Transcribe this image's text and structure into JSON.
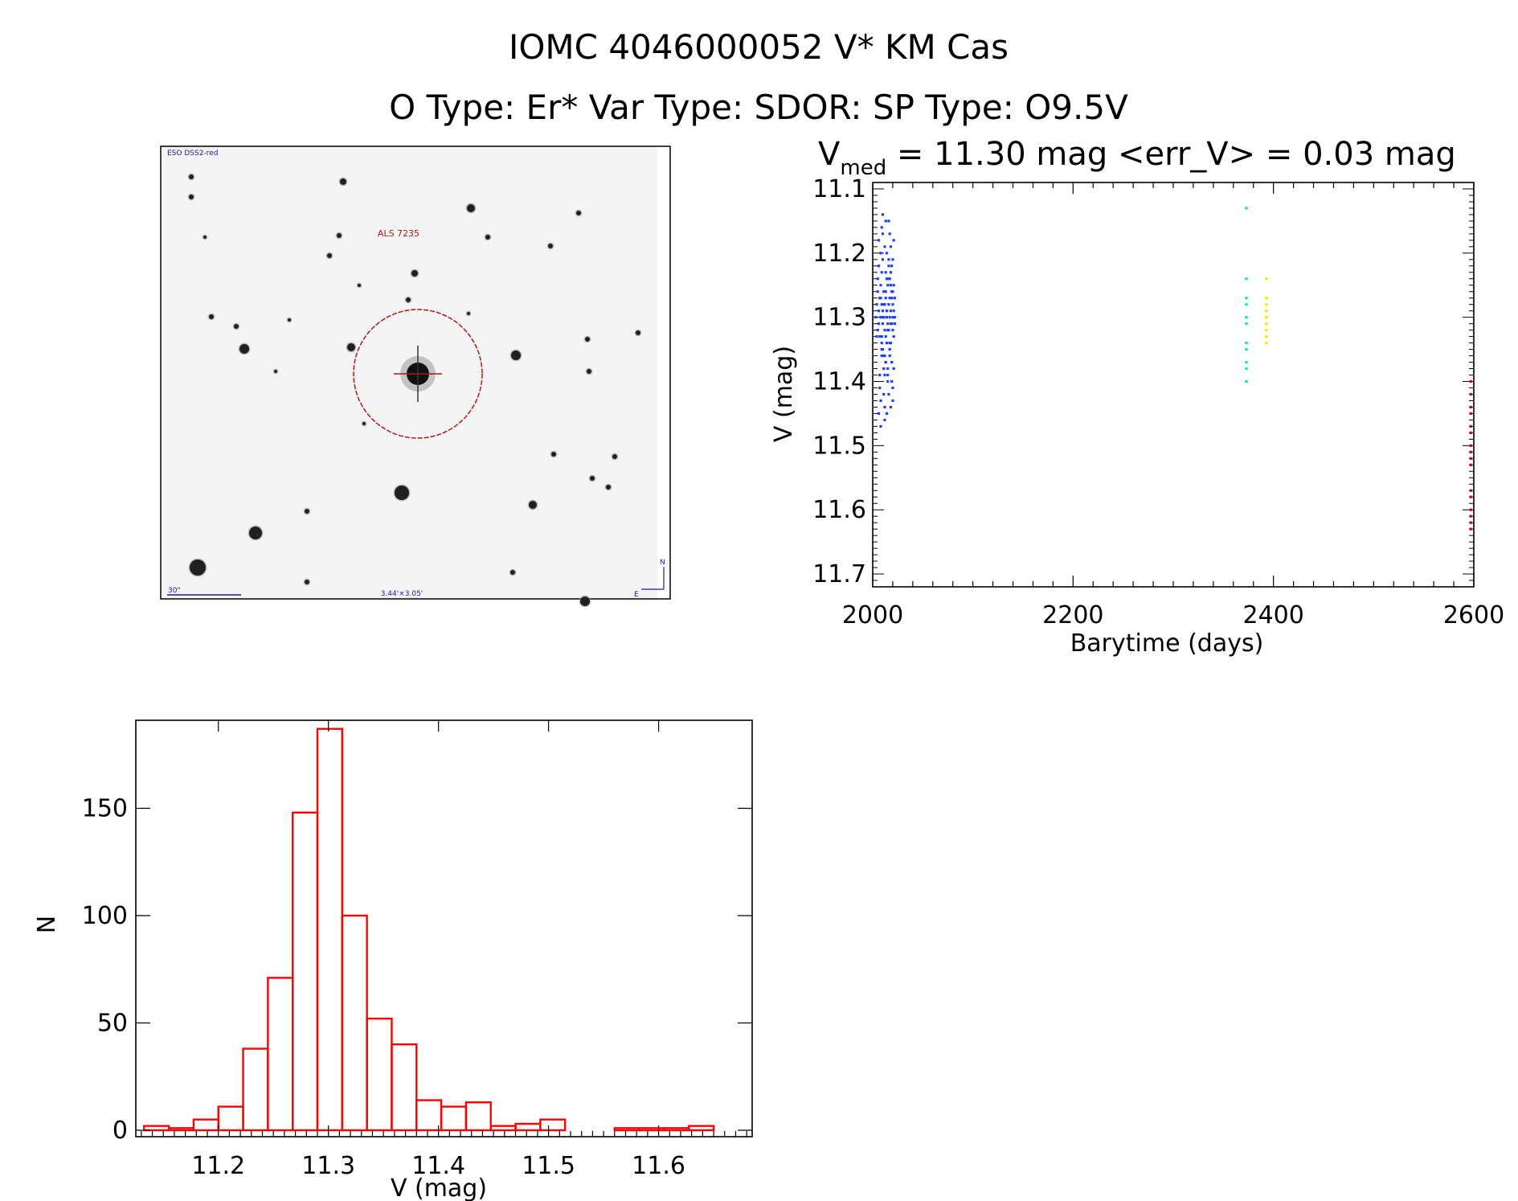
{
  "header": {
    "title": "IOMC 4046000052    V* KM Cas",
    "subtitle": "O Type: Er*  Var Type: SDOR:  SP Type: O9.5V"
  },
  "finder": {
    "survey_label": "ESO DSS2-red",
    "target_label": "ALS 7235",
    "scale_label": "30\"",
    "fov_label": "3.44'×3.05'",
    "north_label": "N",
    "east_label": "E"
  },
  "chart_data": [
    {
      "type": "scatter",
      "name": "light-curve",
      "title_main": "V",
      "title_sub": "med",
      "title_rest": " = 11.30 mag <err_V> = 0.03 mag",
      "xlabel": "Barytime (days)",
      "ylabel": "V (mag)",
      "xlim": [
        2000,
        2600
      ],
      "ylim": [
        11.72,
        11.09
      ],
      "x_ticks": [
        2000,
        2200,
        2400,
        2600
      ],
      "x_tick_labels": [
        "2000",
        "2200",
        "2400",
        "2600"
      ],
      "y_ticks": [
        11.1,
        11.2,
        11.3,
        11.4,
        11.5,
        11.6,
        11.7
      ],
      "y_tick_labels": [
        "11.1",
        "11.2",
        "11.3",
        "11.4",
        "11.5",
        "11.6",
        "11.7"
      ],
      "series": [
        {
          "name": "blue",
          "color": "#1f3fff",
          "x": [
            2003,
            2004,
            2005,
            2005,
            2006,
            2006,
            2007,
            2007,
            2008,
            2008,
            2009,
            2009,
            2010,
            2010,
            2011,
            2011,
            2012,
            2012,
            2013,
            2013,
            2014,
            2014,
            2015,
            2015,
            2016,
            2016,
            2017,
            2017,
            2018,
            2018,
            2019,
            2019,
            2020,
            2020,
            2021,
            2021,
            2022,
            2022,
            2006,
            2010,
            2014,
            2018,
            2009,
            2013,
            2017,
            2021,
            2008,
            2012,
            2016,
            2020,
            2007,
            2011,
            2015,
            2019,
            2005,
            2009,
            2013,
            2017,
            2021,
            2004,
            2008,
            2012,
            2016,
            2020,
            2006,
            2010,
            2014,
            2018,
            2022,
            2007,
            2011,
            2015,
            2019,
            2009,
            2013,
            2017,
            2021,
            2008,
            2012,
            2016,
            2020,
            2010,
            2014,
            2018,
            2011,
            2015,
            2019,
            2009,
            2013,
            2017,
            2006,
            2012,
            2018,
            2010,
            2016,
            2008,
            2014,
            2020,
            2011,
            2017,
            2013,
            2009,
            2015,
            2019,
            2012,
            2016,
            2010,
            2018,
            2014,
            2020
          ],
          "y": [
            11.3,
            11.28,
            11.32,
            11.26,
            11.29,
            11.31,
            11.27,
            11.33,
            11.3,
            11.25,
            11.28,
            11.34,
            11.29,
            11.31,
            11.26,
            11.3,
            11.32,
            11.28,
            11.27,
            11.33,
            11.29,
            11.3,
            11.31,
            11.25,
            11.28,
            11.32,
            11.3,
            11.27,
            11.29,
            11.34,
            11.31,
            11.26,
            11.3,
            11.28,
            11.33,
            11.29,
            11.27,
            11.31,
            11.22,
            11.21,
            11.24,
            11.23,
            11.36,
            11.37,
            11.35,
            11.38,
            11.2,
            11.19,
            11.22,
            11.21,
            11.39,
            11.38,
            11.4,
            11.37,
            11.24,
            11.35,
            11.23,
            11.36,
            11.25,
            11.33,
            11.27,
            11.36,
            11.24,
            11.32,
            11.18,
            11.17,
            11.2,
            11.19,
            11.3,
            11.41,
            11.42,
            11.39,
            11.4,
            11.16,
            11.15,
            11.17,
            11.18,
            11.43,
            11.44,
            11.42,
            11.41,
            11.3,
            11.29,
            11.31,
            11.28,
            11.32,
            11.27,
            11.33,
            11.26,
            11.34,
            11.45,
            11.46,
            11.44,
            11.14,
            11.15,
            11.47,
            11.45,
            11.43,
            11.36,
            11.24,
            11.37,
            11.23,
            11.38,
            11.22,
            11.39,
            11.21,
            11.35,
            11.25,
            11.34,
            11.26
          ]
        },
        {
          "name": "green",
          "color": "#00e5a0",
          "x": [
            2373,
            2373,
            2373,
            2373,
            2373,
            2373,
            2373,
            2373,
            2373,
            2373,
            2373
          ],
          "y": [
            11.13,
            11.24,
            11.27,
            11.28,
            11.3,
            11.31,
            11.34,
            11.35,
            11.37,
            11.38,
            11.4
          ]
        },
        {
          "name": "yellow",
          "color": "#e8e800",
          "x": [
            2393,
            2393,
            2393,
            2393,
            2393,
            2393,
            2393,
            2393,
            2393,
            2393,
            2393,
            2393
          ],
          "y": [
            11.24,
            11.27,
            11.28,
            11.29,
            11.29,
            11.3,
            11.3,
            11.31,
            11.31,
            11.32,
            11.33,
            11.34
          ]
        },
        {
          "name": "red",
          "color": "#e00000",
          "x": [
            2597,
            2597,
            2597,
            2597,
            2597,
            2597,
            2597,
            2597,
            2597,
            2597,
            2597,
            2597,
            2597,
            2597,
            2597,
            2597
          ],
          "y": [
            11.4,
            11.42,
            11.44,
            11.45,
            11.47,
            11.48,
            11.5,
            11.51,
            11.52,
            11.53,
            11.57,
            11.58,
            11.6,
            11.61,
            11.62,
            11.63
          ]
        }
      ]
    },
    {
      "type": "bar",
      "name": "histogram",
      "xlabel": "V (mag)",
      "ylabel": "N",
      "xlim": [
        11.125,
        11.685
      ],
      "ylim": [
        -3,
        191
      ],
      "x_ticks": [
        11.2,
        11.3,
        11.4,
        11.5,
        11.6
      ],
      "x_tick_labels": [
        "11.2",
        "11.3",
        "11.4",
        "11.5",
        "11.6"
      ],
      "y_ticks": [
        0,
        50,
        100,
        150
      ],
      "y_tick_labels": [
        "0",
        "50",
        "100",
        "150"
      ],
      "bin_width": 0.0225,
      "bin_start": 11.1325,
      "values": [
        2,
        1,
        5,
        11,
        38,
        71,
        148,
        187,
        100,
        52,
        40,
        14,
        11,
        13,
        2,
        3,
        5,
        0,
        0,
        1,
        1,
        1,
        2
      ]
    }
  ]
}
